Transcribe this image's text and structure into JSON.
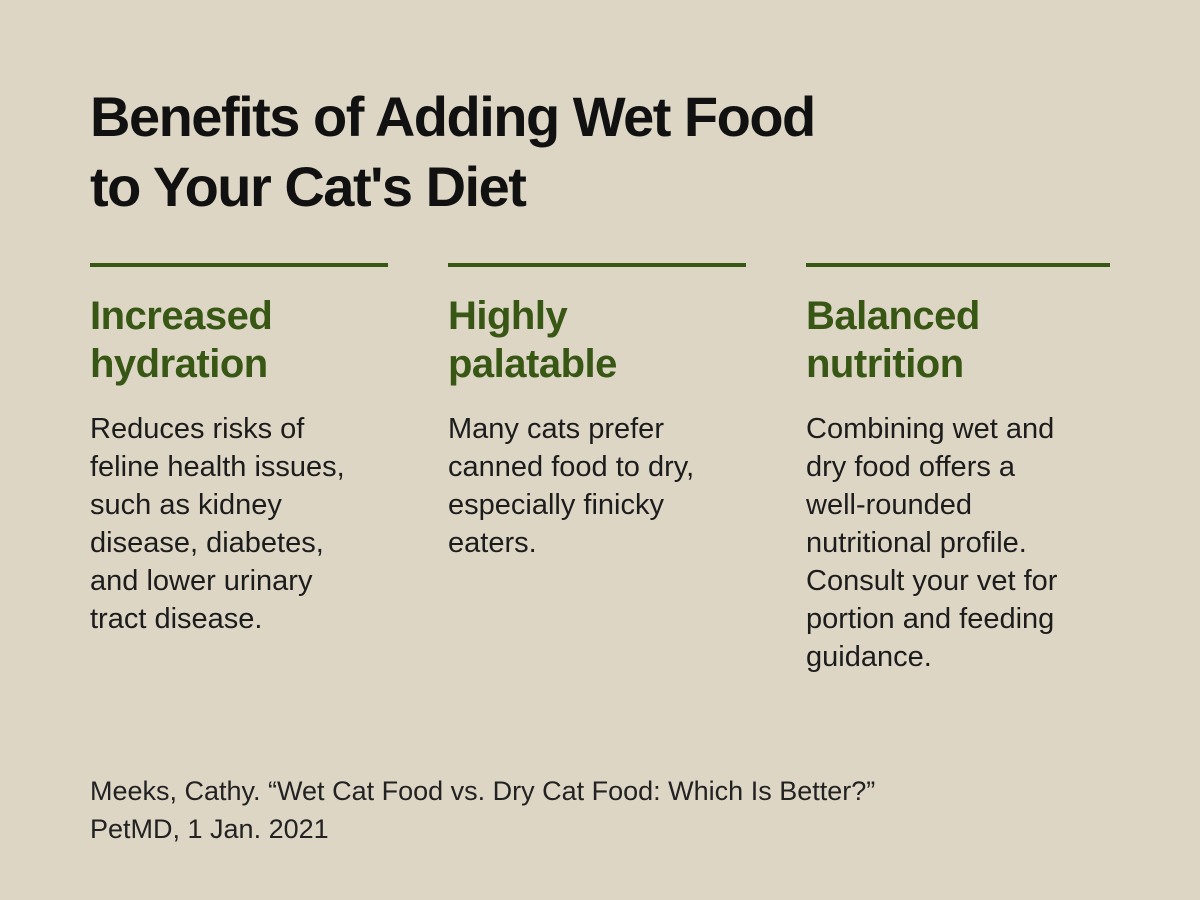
{
  "colors": {
    "background": "#ddd6c5",
    "accent": "#385614",
    "text": "#111111"
  },
  "title": {
    "line1": "Benefits of Adding Wet Food",
    "line2": "to Your Cat's Diet"
  },
  "benefits": [
    {
      "heading": [
        "Increased",
        "hydration"
      ],
      "body": [
        "Reduces risks of",
        "feline health issues,",
        "such as kidney",
        "disease, diabetes,",
        "and lower urinary",
        "tract disease."
      ]
    },
    {
      "heading": [
        "Highly",
        "palatable"
      ],
      "body": [
        "Many cats prefer",
        "canned food to dry,",
        "especially finicky",
        "eaters."
      ]
    },
    {
      "heading": [
        "Balanced",
        "nutrition"
      ],
      "body": [
        "Combining wet and",
        "dry food offers a",
        "well-rounded",
        "nutritional profile.",
        "Consult your vet for",
        "portion and feeding",
        "guidance."
      ]
    }
  ],
  "citation": {
    "line1": "Meeks, Cathy. “Wet Cat Food vs. Dry Cat Food: Which Is Better?”",
    "line2": "PetMD, 1 Jan. 2021"
  }
}
